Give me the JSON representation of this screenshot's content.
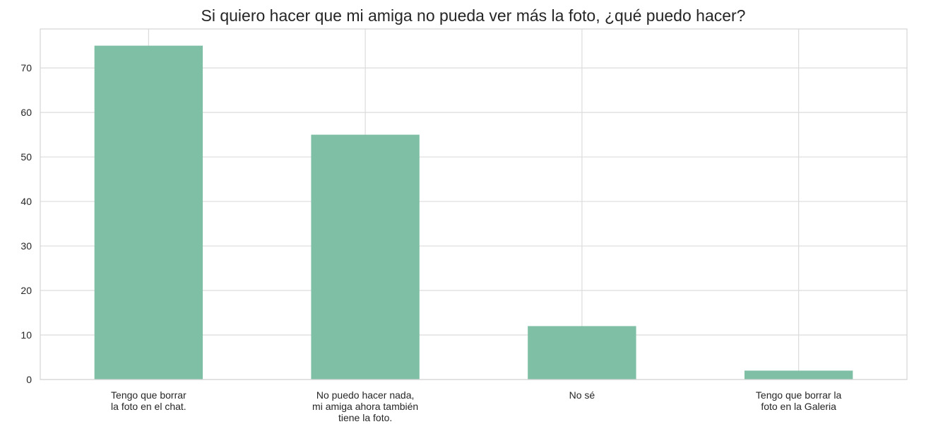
{
  "chart_data": {
    "type": "bar",
    "title": "Si quiero hacer que mi amiga no pueda ver más la foto, ¿qué puedo hacer?",
    "xlabel": "",
    "ylabel": "",
    "categories": [
      [
        "Tengo que borrar",
        "la foto en el chat."
      ],
      [
        "No puedo hacer nada,",
        "mi amiga ahora también",
        "tiene la foto."
      ],
      [
        "No sé"
      ],
      [
        "Tengo que borrar la",
        "foto en la Galeria"
      ]
    ],
    "values": [
      75,
      55,
      12,
      2
    ],
    "ylim": [
      0,
      78.75
    ],
    "yticks": [
      0,
      10,
      20,
      30,
      40,
      50,
      60,
      70
    ],
    "grid": true,
    "bar_color": "#7fbfa6",
    "grid_color": "#dcdcdc"
  }
}
